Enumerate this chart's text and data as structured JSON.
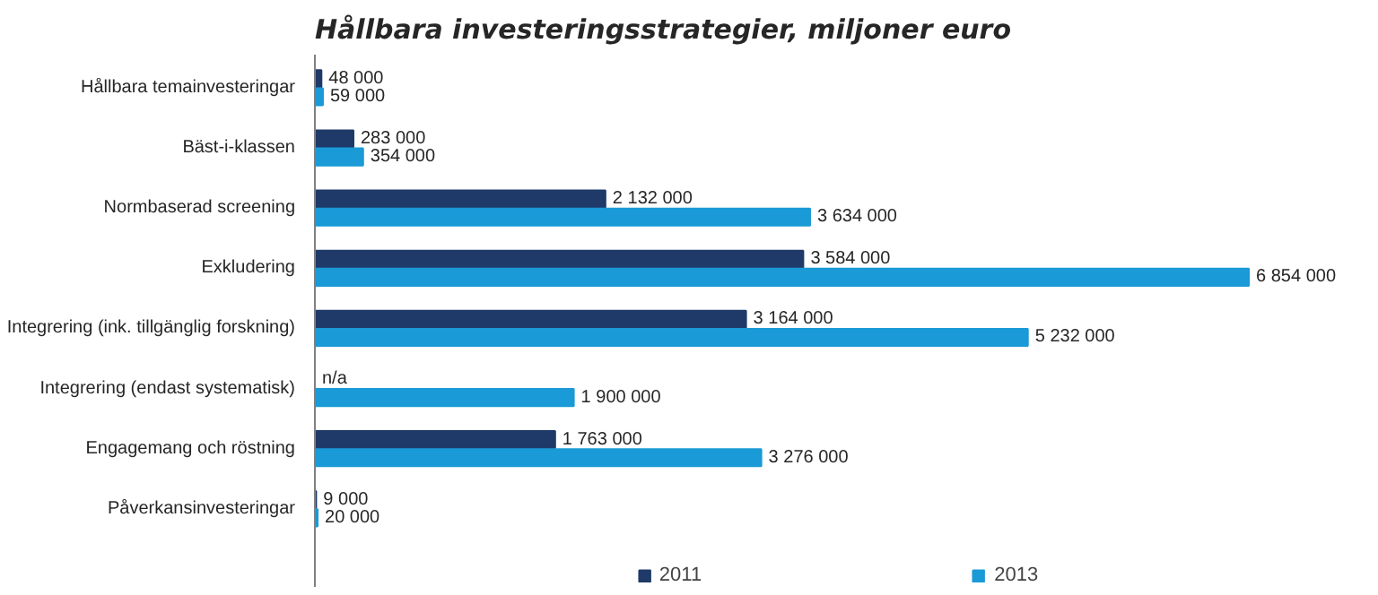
{
  "chart_data": {
    "type": "bar",
    "orientation": "horizontal",
    "title": "Hållbara investeringsstrategier, miljoner euro",
    "categories": [
      "Hållbara temainvesteringar",
      "Bäst-i-klassen",
      "Normbaserad screening",
      "Exkludering",
      "Integrering (ink. tillgänglig forskning)",
      "Integrering (endast systematisk)",
      "Engagemang och röstning",
      "Påverkansinvesteringar"
    ],
    "series": [
      {
        "name": "2011",
        "color": "#1f3a68",
        "values": [
          48000,
          283000,
          2132000,
          3584000,
          3164000,
          null,
          1763000,
          9000
        ],
        "value_labels": [
          "48 000",
          "283 000",
          "2 132 000",
          "3 584 000",
          "3 164 000",
          "n/a",
          "1 763 000",
          "9 000"
        ]
      },
      {
        "name": "2013",
        "color": "#1a9ad6",
        "values": [
          59000,
          354000,
          3634000,
          6854000,
          5232000,
          1900000,
          3276000,
          20000
        ],
        "value_labels": [
          "59 000",
          "354 000",
          "3 634 000",
          "6 854 000",
          "5 232 000",
          "1 900 000",
          "3 276 000",
          "20 000"
        ]
      }
    ],
    "legend": "bottom",
    "grid": false
  }
}
